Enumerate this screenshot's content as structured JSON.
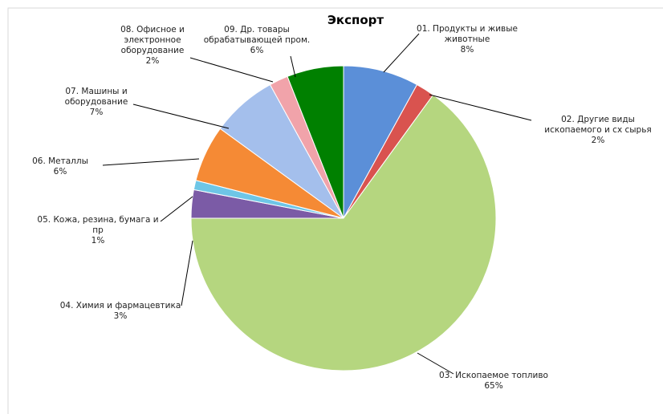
{
  "chart_data": {
    "type": "pie",
    "title": "Экспорт",
    "categories": [
      "01. Продукты и живые животные",
      "02. Другие виды ископаемого и сх сырья",
      "03. Ископаемое топливо",
      "04. Химия и фармацевтика",
      "05. Кожа, резина, бумага и пр",
      "06. Металлы",
      "07. Машины и оборудование",
      "08. Офисное и электронное оборудование",
      "09. Др. товары обрабатывающей пром."
    ],
    "values": [
      8,
      2,
      65,
      3,
      1,
      6,
      7,
      2,
      6
    ],
    "value_labels": [
      "8%",
      "2%",
      "65%",
      "3%",
      "1%",
      "6%",
      "7%",
      "2%",
      "6%"
    ],
    "colors": [
      "#5b8fd8",
      "#d9534f",
      "#b5d67f",
      "#7b5ba6",
      "#6ec6e6",
      "#f58a35",
      "#a4bfec",
      "#f1a3aa",
      "#008000"
    ]
  }
}
